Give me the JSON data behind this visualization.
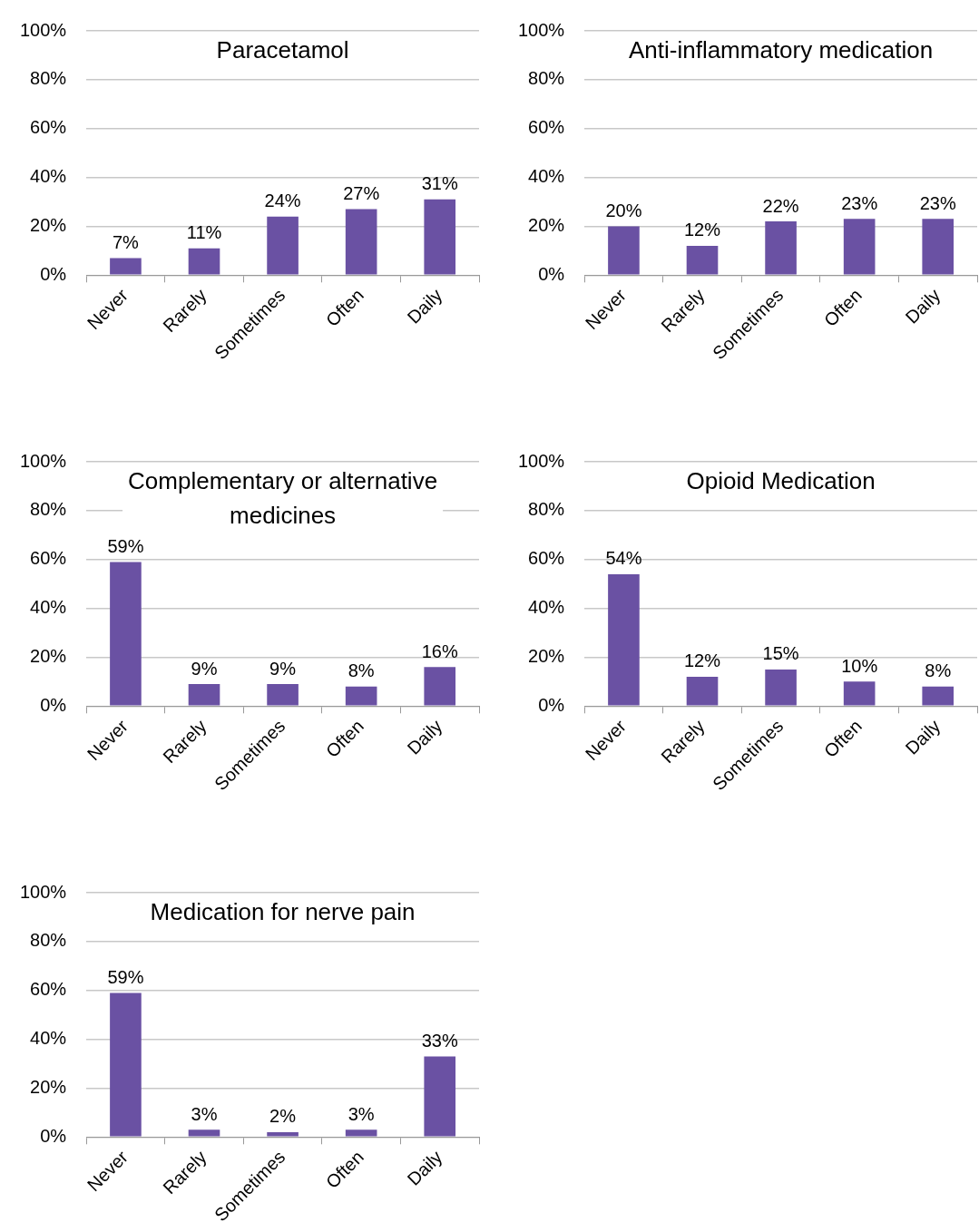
{
  "chart_data": [
    {
      "type": "bar",
      "title": "Paracetamol",
      "categories": [
        "Never",
        "Rarely",
        "Sometimes",
        "Often",
        "Daily"
      ],
      "values": [
        7,
        11,
        24,
        27,
        31
      ],
      "value_labels": [
        "7%",
        "11%",
        "24%",
        "27%",
        "31%"
      ],
      "color": "#6a51a3",
      "ylim": [
        0,
        100
      ],
      "yticks": [
        {
          "value": 0,
          "label": "0%"
        },
        {
          "value": 20,
          "label": "20%"
        },
        {
          "value": 40,
          "label": "40%"
        },
        {
          "value": 60,
          "label": "60%"
        },
        {
          "value": 80,
          "label": "80%"
        },
        {
          "value": 100,
          "label": "100%"
        }
      ],
      "grid": "y",
      "legend": false
    },
    {
      "type": "bar",
      "title": "Anti-inflammatory medication",
      "categories": [
        "Never",
        "Rarely",
        "Sometimes",
        "Often",
        "Daily"
      ],
      "values": [
        20,
        12,
        22,
        23,
        23
      ],
      "value_labels": [
        "20%",
        "12%",
        "22%",
        "23%",
        "23%"
      ],
      "color": "#6a51a3",
      "ylim": [
        0,
        100
      ],
      "yticks": [
        {
          "value": 0,
          "label": "0%"
        },
        {
          "value": 20,
          "label": "20%"
        },
        {
          "value": 40,
          "label": "40%"
        },
        {
          "value": 60,
          "label": "60%"
        },
        {
          "value": 80,
          "label": "80%"
        },
        {
          "value": 100,
          "label": "100%"
        }
      ],
      "grid": "y",
      "legend": false
    },
    {
      "type": "bar",
      "title": "Complementary or alternative medicines",
      "categories": [
        "Never",
        "Rarely",
        "Sometimes",
        "Often",
        "Daily"
      ],
      "values": [
        59,
        9,
        9,
        8,
        16
      ],
      "value_labels": [
        "59%",
        "9%",
        "9%",
        "8%",
        "16%"
      ],
      "color": "#6a51a3",
      "ylim": [
        0,
        100
      ],
      "yticks": [
        {
          "value": 0,
          "label": "0%"
        },
        {
          "value": 20,
          "label": "20%"
        },
        {
          "value": 40,
          "label": "40%"
        },
        {
          "value": 60,
          "label": "60%"
        },
        {
          "value": 80,
          "label": "80%"
        },
        {
          "value": 100,
          "label": "100%"
        }
      ],
      "grid": "y",
      "legend": false
    },
    {
      "type": "bar",
      "title": "Opioid Medication",
      "categories": [
        "Never",
        "Rarely",
        "Sometimes",
        "Often",
        "Daily"
      ],
      "values": [
        54,
        12,
        15,
        10,
        8
      ],
      "value_labels": [
        "54%",
        "12%",
        "15%",
        "10%",
        "8%"
      ],
      "color": "#6a51a3",
      "ylim": [
        0,
        100
      ],
      "yticks": [
        {
          "value": 0,
          "label": "0%"
        },
        {
          "value": 20,
          "label": "20%"
        },
        {
          "value": 40,
          "label": "40%"
        },
        {
          "value": 60,
          "label": "60%"
        },
        {
          "value": 80,
          "label": "80%"
        },
        {
          "value": 100,
          "label": "100%"
        }
      ],
      "grid": "y",
      "legend": false
    },
    {
      "type": "bar",
      "title": "Medication for nerve pain",
      "categories": [
        "Never",
        "Rarely",
        "Sometimes",
        "Often",
        "Daily"
      ],
      "values": [
        59,
        3,
        2,
        3,
        33
      ],
      "value_labels": [
        "59%",
        "3%",
        "2%",
        "3%",
        "33%"
      ],
      "color": "#6a51a3",
      "ylim": [
        0,
        100
      ],
      "yticks": [
        {
          "value": 0,
          "label": "0%"
        },
        {
          "value": 20,
          "label": "20%"
        },
        {
          "value": 40,
          "label": "40%"
        },
        {
          "value": 60,
          "label": "60%"
        },
        {
          "value": 80,
          "label": "80%"
        },
        {
          "value": 100,
          "label": "100%"
        }
      ],
      "grid": "y",
      "legend": false
    }
  ]
}
